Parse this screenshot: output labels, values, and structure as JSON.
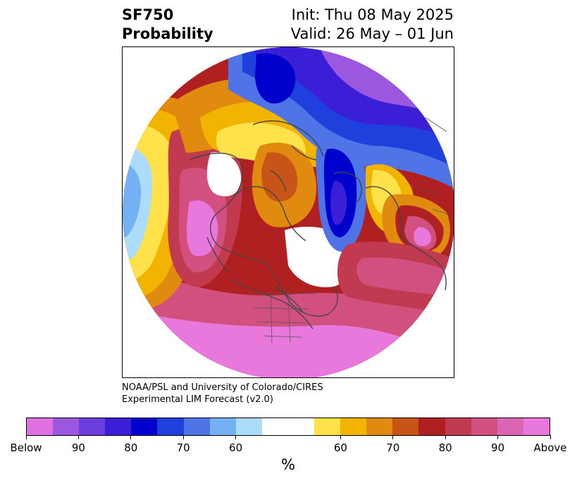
{
  "title": {
    "left_line1": "SF750",
    "left_line2": "Probability",
    "right_line1": "Init: Thu 08 May 2025",
    "right_line2": "Valid: 26 May – 01 Jun"
  },
  "credit": {
    "line1": "NOAA/PSL and University of Colorado/CIRES",
    "line2": "Experimental LIM Forecast (v2.0)"
  },
  "colorbar": {
    "unit": "%",
    "labels": [
      "Below",
      "90",
      "80",
      "70",
      "60",
      "60",
      "70",
      "80",
      "90",
      "Above"
    ],
    "colors": [
      "#e070e0",
      "#9b57e0",
      "#6a3ddd",
      "#3a1fd6",
      "#0000cc",
      "#2040dd",
      "#4f74e8",
      "#74b0f4",
      "#acdcfa",
      "#ffffff",
      "#ffe24a",
      "#f2b400",
      "#e08a10",
      "#c85418",
      "#b02020",
      "#c23a50",
      "#d25080",
      "#dc64b4",
      "#e878dc"
    ]
  },
  "map": {
    "projection": "north-polar-stereographic",
    "field": "SF750 probability",
    "palette": {
      "below_high": "#e070e0",
      "below_90": "#9b57e0",
      "below_80": "#3a1fd6",
      "below_70": "#0000cc",
      "below_60": "#4f74e8",
      "below_light": "#acdcfa",
      "neutral": "#ffffff",
      "above_light": "#ffe24a",
      "above_60": "#f2b400",
      "above_70": "#e08a10",
      "above_80": "#b02020",
      "above_90": "#d25080",
      "above_high": "#e878dc"
    }
  }
}
